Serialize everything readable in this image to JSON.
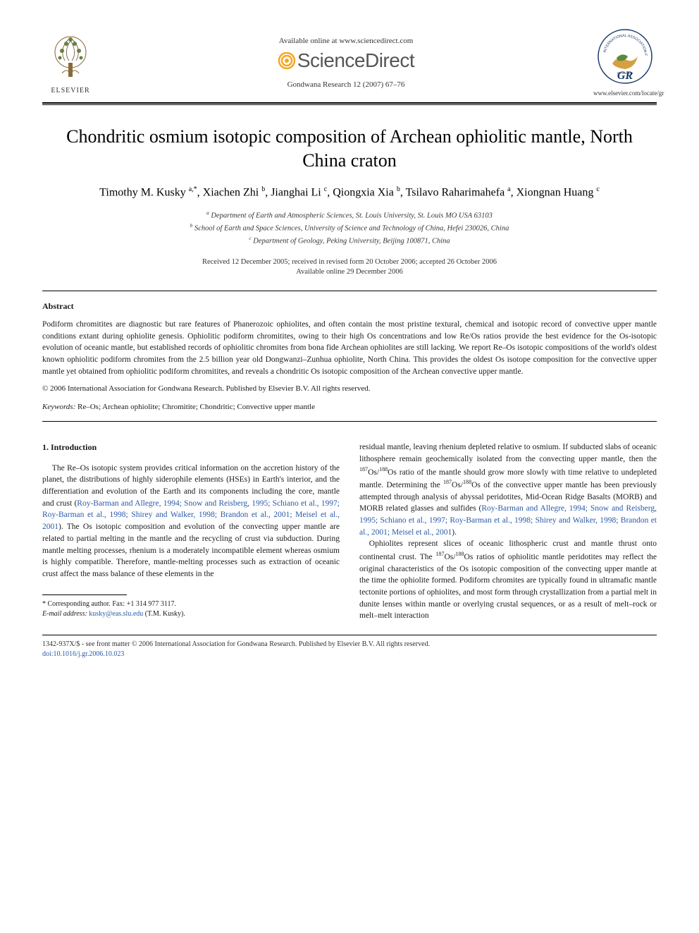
{
  "header": {
    "elsevier_label": "ELSEVIER",
    "available_online": "Available online at www.sciencedirect.com",
    "sciencedirect": "ScienceDirect",
    "journal_line": "Gondwana Research 12 (2007) 67–76",
    "gr_url": "www.elsevier.com/locate/gr"
  },
  "title": "Chondritic osmium isotopic composition of Archean ophiolitic mantle, North China craton",
  "authors_html": "Timothy M. Kusky <sup>a,*</sup>, Xiachen Zhi <sup>b</sup>, Jianghai Li <sup>c</sup>, Qiongxia Xia <sup>b</sup>, Tsilavo Raharimahefa <sup>a</sup>, Xiongnan Huang <sup>c</sup>",
  "affiliations": {
    "a": "Department of Earth and Atmospheric Sciences, St. Louis University, St. Louis MO USA 63103",
    "b": "School of Earth and Space Sciences, University of Science and Technology of China, Hefei 230026, China",
    "c": "Department of Geology, Peking University, Beijing 100871, China"
  },
  "dates": {
    "line1": "Received 12 December 2005; received in revised form 20 October 2006; accepted 26 October 2006",
    "line2": "Available online 29 December 2006"
  },
  "abstract": {
    "heading": "Abstract",
    "body": "Podiform chromitites are diagnostic but rare features of Phanerozoic ophiolites, and often contain the most pristine textural, chemical and isotopic record of convective upper mantle conditions extant during ophiolite genesis. Ophiolitic podiform chromitites, owing to their high Os concentrations and low Re/Os ratios provide the best evidence for the Os-isotopic evolution of oceanic mantle, but established records of ophiolitic chromites from bona fide Archean ophiolites are still lacking. We report Re–Os isotopic compositions of the world's oldest known ophiolitic podiform chromites from the 2.5 billion year old Dongwanzi–Zunhua ophiolite, North China. This provides the oldest Os isotope composition for the convective upper mantle yet obtained from ophiolitic podiform chromitites, and reveals a chondritic Os isotopic composition of the Archean convective upper mantle.",
    "copyright": "© 2006 International Association for Gondwana Research. Published by Elsevier B.V. All rights reserved."
  },
  "keywords": {
    "label": "Keywords:",
    "text": "Re–Os; Archean ophiolite; Chromitite; Chondritic; Convective upper mantle"
  },
  "intro": {
    "heading": "1. Introduction",
    "col1_p1_a": "The Re–Os isotopic system provides critical information on the accretion history of the planet, the distributions of highly siderophile elements (HSEs) in Earth's interior, and the differentiation and evolution of the Earth and its components including the core, mantle and crust (",
    "col1_p1_ref": "Roy-Barman and Allegre, 1994; Snow and Reisberg, 1995; Schiano et al., 1997; Roy-Barman et al., 1998; Shirey and Walker, 1998; Brandon et al., 2001; Meisel et al., 2001",
    "col1_p1_b": "). The Os isotopic composition and evolution of the convecting upper mantle are related to partial melting in the mantle and the recycling of crust via subduction. During mantle melting processes, rhenium is a moderately incompatible element whereas osmium is highly compatible. Therefore, mantle-melting processes such as extraction of oceanic crust affect the mass balance of these elements in the",
    "col2_p1_a": "residual mantle, leaving rhenium depleted relative to osmium. If subducted slabs of oceanic lithosphere remain geochemically isolated from the convecting upper mantle, then the ",
    "col2_iso1": "187Os/188Os",
    "col2_p1_b": " ratio of the mantle should grow more slowly with time relative to undepleted mantle. Determining the ",
    "col2_iso2": "187Os/188Os",
    "col2_p1_c": " of the convective upper mantle has been previously attempted through analysis of abyssal peridotites, Mid-Ocean Ridge Basalts (MORB) and MORB related glasses and sulfides (",
    "col2_p1_ref": "Roy-Barman and Allegre, 1994; Snow and Reisberg, 1995; Schiano et al., 1997; Roy-Barman et al., 1998; Shirey and Walker, 1998; Brandon et al., 2001; Meisel et al., 2001",
    "col2_p1_d": ").",
    "col2_p2_a": "Ophiolites represent slices of oceanic lithospheric crust and mantle thrust onto continental crust. The ",
    "col2_iso3": "187Os/188Os",
    "col2_p2_b": " ratios of ophiolitic mantle peridotites may reflect the original characteristics of the Os isotopic composition of the convecting upper mantle at the time the ophiolite formed. Podiform chromites are typically found in ultramafic mantle tectonite portions of ophiolites, and most form through crystallization from a partial melt in dunite lenses within mantle or overlying crustal sequences, or as a result of melt–rock or melt–melt interaction"
  },
  "footnote": {
    "corr": "* Corresponding author. Fax: +1 314 977 3117.",
    "email_label": "E-mail address:",
    "email": "kusky@eas.slu.edu",
    "email_tail": "(T.M. Kusky)."
  },
  "bottom": {
    "issn": "1342-937X/$ - see front matter © 2006 International Association for Gondwana Research. Published by Elsevier B.V. All rights reserved.",
    "doi": "doi:10.1016/j.gr.2006.10.023"
  },
  "colors": {
    "link": "#2a5aa8",
    "text": "#1a1a1a",
    "muted": "#333333",
    "elsevier_orange": "#e77a3c",
    "sd_swirl": "#f5a623"
  }
}
